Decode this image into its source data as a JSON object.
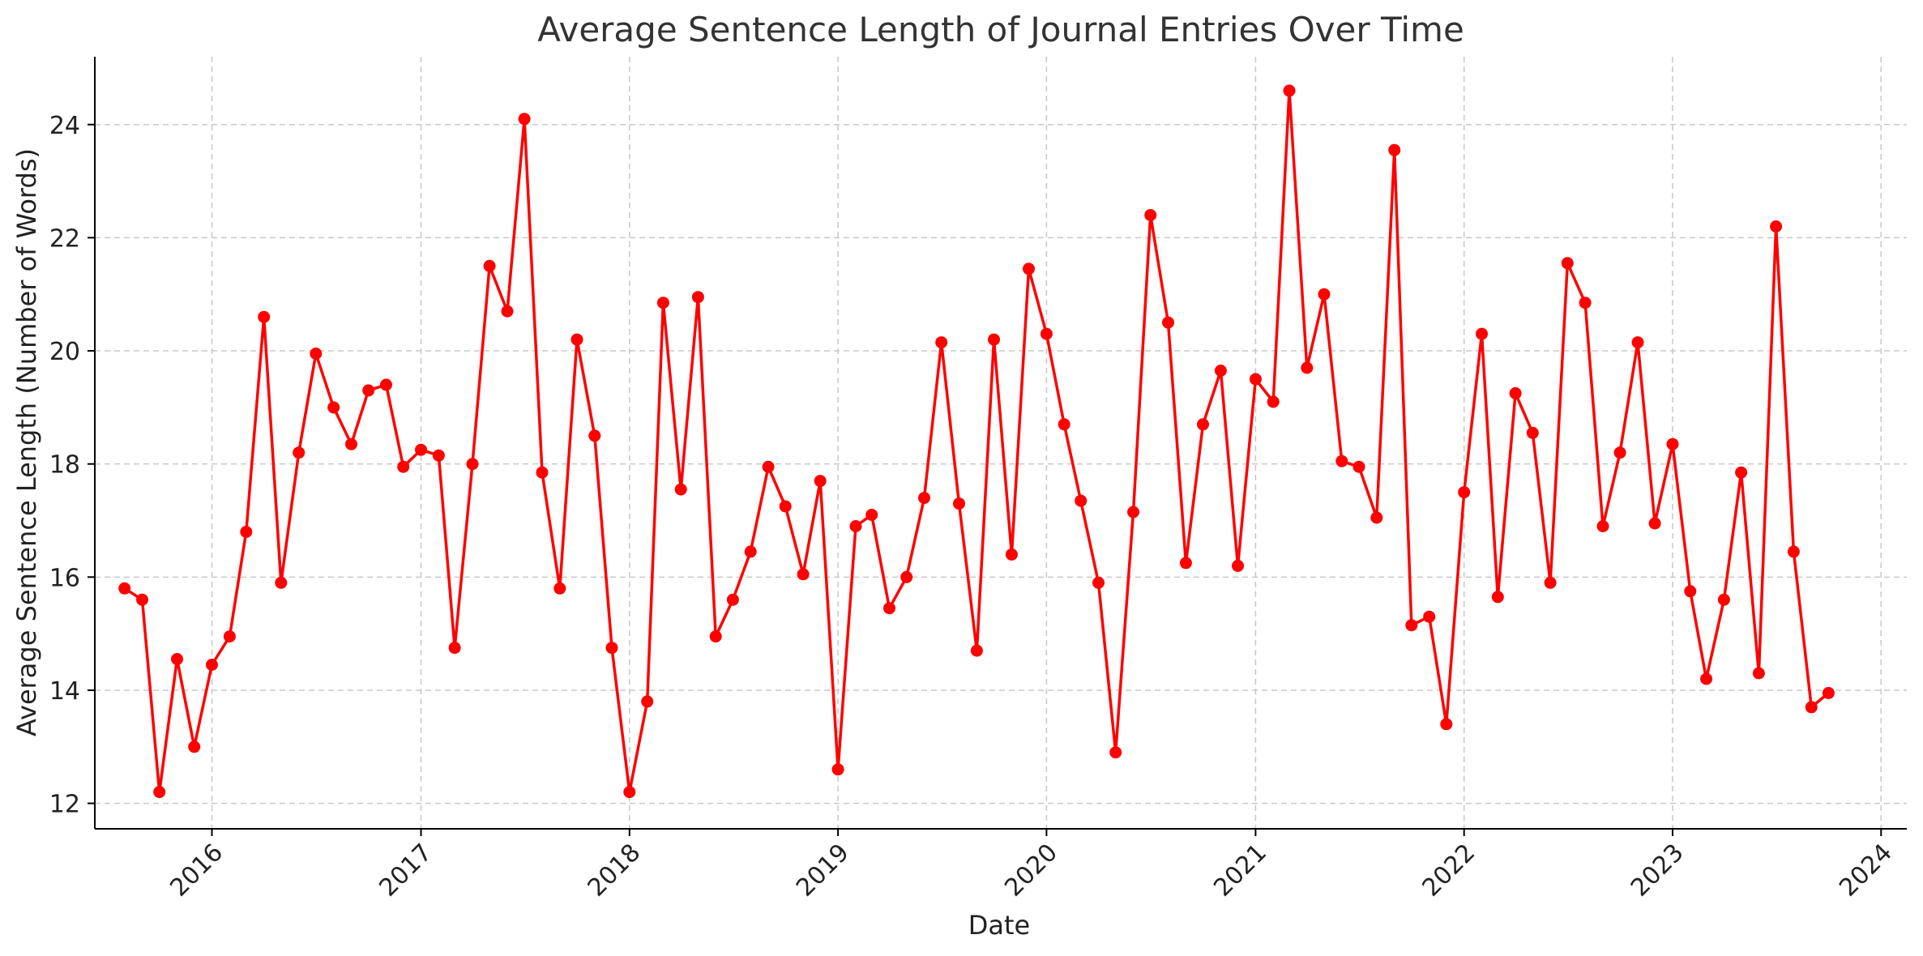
{
  "chart_data": {
    "type": "line",
    "title": "Average Sentence Length of Journal Entries Over Time",
    "xlabel": "Date",
    "ylabel": "Average Sentence Length (Number of Words)",
    "x_ticks": [
      "2016",
      "2017",
      "2018",
      "2019",
      "2020",
      "2021",
      "2022",
      "2023",
      "2024"
    ],
    "y_ticks": [
      12,
      14,
      16,
      18,
      20,
      22,
      24
    ],
    "xlim": [
      "2015-06-10",
      "2024-02-15"
    ],
    "ylim": [
      11.55,
      25.2
    ],
    "grid": true,
    "series": [
      {
        "color": "#ff0000",
        "marker": "circle",
        "x": [
          "2015-08-01",
          "2015-09-01",
          "2015-10-01",
          "2015-11-01",
          "2015-12-01",
          "2016-01-01",
          "2016-02-01",
          "2016-03-01",
          "2016-04-01",
          "2016-05-01",
          "2016-06-01",
          "2016-07-01",
          "2016-08-01",
          "2016-09-01",
          "2016-10-01",
          "2016-11-01",
          "2016-12-01",
          "2017-01-01",
          "2017-02-01",
          "2017-03-01",
          "2017-04-01",
          "2017-05-01",
          "2017-06-01",
          "2017-07-01",
          "2017-08-01",
          "2017-09-01",
          "2017-10-01",
          "2017-11-01",
          "2017-12-01",
          "2018-01-01",
          "2018-02-01",
          "2018-03-01",
          "2018-04-01",
          "2018-05-01",
          "2018-06-01",
          "2018-07-01",
          "2018-08-01",
          "2018-09-01",
          "2018-10-01",
          "2018-11-01",
          "2018-12-01",
          "2019-01-01",
          "2019-02-01",
          "2019-03-01",
          "2019-04-01",
          "2019-05-01",
          "2019-06-01",
          "2019-07-01",
          "2019-08-01",
          "2019-09-01",
          "2019-10-01",
          "2019-11-01",
          "2019-12-01",
          "2020-01-01",
          "2020-02-01",
          "2020-03-01",
          "2020-04-01",
          "2020-05-01",
          "2020-06-01",
          "2020-07-01",
          "2020-08-01",
          "2020-09-01",
          "2020-10-01",
          "2020-11-01",
          "2020-12-01",
          "2021-01-01",
          "2021-02-01",
          "2021-03-01",
          "2021-04-01",
          "2021-05-01",
          "2021-06-01",
          "2021-07-01",
          "2021-08-01",
          "2021-09-01",
          "2021-10-01",
          "2021-11-01",
          "2021-12-01",
          "2022-01-01",
          "2022-02-01",
          "2022-03-01",
          "2022-04-01",
          "2022-05-01",
          "2022-06-01",
          "2022-07-01",
          "2022-08-01",
          "2022-09-01",
          "2022-10-01",
          "2022-11-01",
          "2022-12-01",
          "2023-01-01",
          "2023-02-01",
          "2023-03-01",
          "2023-04-01",
          "2023-05-01",
          "2023-06-01",
          "2023-07-01",
          "2023-08-01",
          "2023-09-01",
          "2023-10-01"
        ],
        "y": [
          15.8,
          15.6,
          12.2,
          14.55,
          13.0,
          14.45,
          14.95,
          16.8,
          20.6,
          15.9,
          18.2,
          19.95,
          19.0,
          18.35,
          19.3,
          19.4,
          17.95,
          18.25,
          18.15,
          14.75,
          18.0,
          21.5,
          20.7,
          24.1,
          17.85,
          15.8,
          20.2,
          18.5,
          14.75,
          12.2,
          13.8,
          20.85,
          17.55,
          20.95,
          14.95,
          15.6,
          16.45,
          17.95,
          17.25,
          16.05,
          17.7,
          12.6,
          16.9,
          17.1,
          15.45,
          16.0,
          17.4,
          20.15,
          17.3,
          14.7,
          20.2,
          16.4,
          21.45,
          20.3,
          18.7,
          17.35,
          15.9,
          12.9,
          17.15,
          22.4,
          20.5,
          16.25,
          18.7,
          19.65,
          16.2,
          19.5,
          19.1,
          24.6,
          19.7,
          21.0,
          18.05,
          17.95,
          17.05,
          23.55,
          15.15,
          15.3,
          13.4,
          17.5,
          20.3,
          15.65,
          19.25,
          18.55,
          15.9,
          21.55,
          20.85,
          16.9,
          18.2,
          20.15,
          16.95,
          18.35,
          15.75,
          14.2,
          15.6,
          17.85,
          14.3,
          22.2,
          16.45,
          13.7,
          13.95
        ]
      }
    ]
  }
}
